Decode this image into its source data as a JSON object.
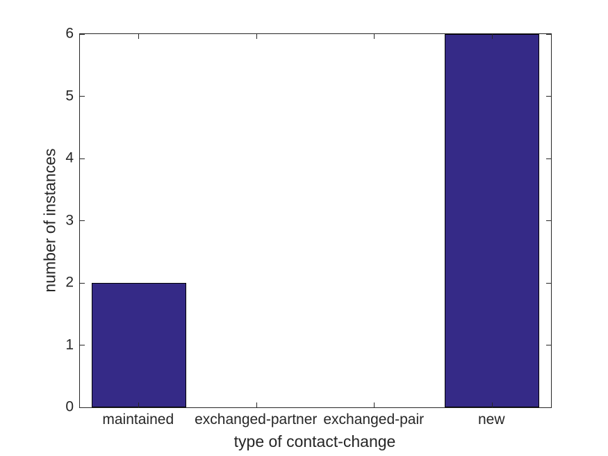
{
  "chart_data": {
    "type": "bar",
    "categories": [
      "maintained",
      "exchanged-partner",
      "exchanged-pair",
      "new"
    ],
    "values": [
      2,
      0,
      0,
      6
    ],
    "xlabel": "type of contact-change",
    "ylabel": "number of instances",
    "ylim": [
      0,
      6
    ],
    "yticks": [
      0,
      1,
      2,
      3,
      4,
      5,
      6
    ],
    "bar_width_fraction": 0.8,
    "grid": "off",
    "legend": "none",
    "colors": {
      "bar_face": "#352A87",
      "bar_edge": "#000000",
      "axis": "#262626",
      "text": "#262626",
      "background": "#FFFFFF"
    }
  }
}
